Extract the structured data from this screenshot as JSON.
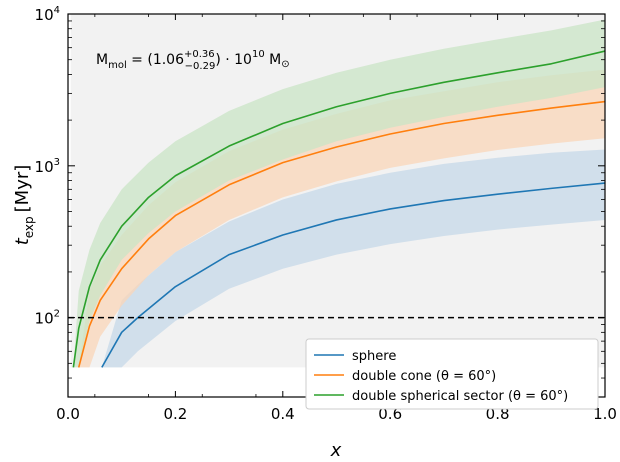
{
  "chart_data": {
    "type": "line",
    "xlabel": "x",
    "ylabel": "t",
    "ylabel_subscript": "exp",
    "ylabel_unit": "[Myr]",
    "xlim": [
      0,
      1.0
    ],
    "ylim": [
      30,
      10000
    ],
    "yscale": "log",
    "xticks": [
      "0.0",
      "0.2",
      "0.4",
      "0.6",
      "0.8",
      "1.0"
    ],
    "yticks": [
      {
        "base": "10",
        "exp": "2",
        "value": 100
      },
      {
        "base": "10",
        "exp": "3",
        "value": 1000
      },
      {
        "base": "10",
        "exp": "4",
        "value": 10000
      }
    ],
    "background_band_color": "#f2f2f2",
    "reference_line": {
      "y": 100,
      "style": "dashed",
      "color": "#000000"
    },
    "annotation": {
      "prefix": "M",
      "prefix_sub": "mol",
      "middle": " = (1.06",
      "sup": "+0.36",
      "sub": "−0.29",
      "suffix": ") · 10",
      "suffix_sup": "10",
      "unit": " M",
      "unit_sub": "⊙"
    },
    "legend_position": "lower-right",
    "series": [
      {
        "name": "sphere",
        "color": "#1f77b4",
        "band_color": "#c6d8e8",
        "x": [
          0.063,
          0.1,
          0.13,
          0.2,
          0.3,
          0.4,
          0.5,
          0.6,
          0.7,
          0.8,
          0.9,
          1.0
        ],
        "y": [
          47,
          80,
          100,
          160,
          260,
          350,
          440,
          520,
          590,
          650,
          710,
          770
        ],
        "y_low": [
          47,
          47,
          60,
          95,
          155,
          210,
          260,
          305,
          345,
          380,
          410,
          440
        ],
        "y_high": [
          47,
          130,
          165,
          270,
          430,
          600,
          760,
          900,
          1030,
          1130,
          1220,
          1280
        ]
      },
      {
        "name": "double cone (θ = 60°)",
        "color": "#ff7f0e",
        "band_color": "#f9d5b8",
        "x": [
          0.02,
          0.04,
          0.06,
          0.1,
          0.15,
          0.2,
          0.3,
          0.4,
          0.5,
          0.6,
          0.7,
          0.8,
          0.9,
          1.0
        ],
        "y": [
          47,
          88,
          130,
          210,
          330,
          470,
          750,
          1050,
          1330,
          1620,
          1900,
          2150,
          2400,
          2650
        ],
        "y_low": [
          47,
          47,
          75,
          120,
          190,
          270,
          440,
          620,
          790,
          970,
          1120,
          1270,
          1400,
          1520
        ],
        "y_high": [
          47,
          150,
          220,
          350,
          550,
          780,
          1250,
          1730,
          2200,
          2700,
          3100,
          3550,
          3950,
          4300
        ]
      },
      {
        "name": "double spherical sector (θ = 60°)",
        "color": "#2ca02c",
        "band_color": "#c9e4c5",
        "x": [
          0.01,
          0.02,
          0.04,
          0.06,
          0.1,
          0.15,
          0.2,
          0.3,
          0.4,
          0.5,
          0.6,
          0.7,
          0.8,
          0.9,
          1.0
        ],
        "y": [
          47,
          85,
          160,
          240,
          400,
          620,
          860,
          1350,
          1900,
          2450,
          3000,
          3550,
          4100,
          4700,
          5700
        ],
        "y_low": [
          47,
          47,
          95,
          140,
          240,
          360,
          500,
          800,
          1100,
          1450,
          1780,
          2100,
          2450,
          2800,
          3300
        ],
        "y_high": [
          47,
          150,
          280,
          420,
          700,
          1050,
          1450,
          2300,
          3200,
          4100,
          5000,
          5900,
          6800,
          7800,
          9200
        ]
      }
    ]
  }
}
